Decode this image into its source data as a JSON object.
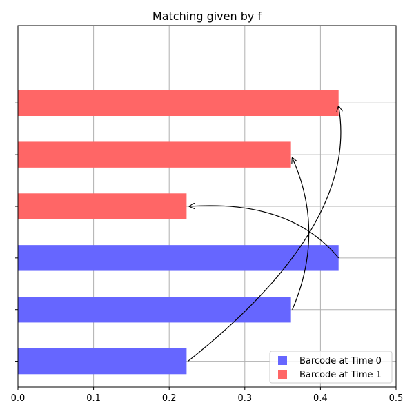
{
  "chart_data": {
    "type": "bar",
    "orientation": "horizontal",
    "title": "Matching given by f",
    "xlabel": "",
    "ylabel": "",
    "xlim": [
      0,
      0.5
    ],
    "x_ticks": [
      "0.0",
      "0.1",
      "0.2",
      "0.3",
      "0.4",
      "0.5"
    ],
    "grid": true,
    "legend_position": "bottom-right",
    "series": [
      {
        "name": "Barcode at Time 0",
        "color": "#6666ff",
        "bars": [
          {
            "start": 0,
            "end": 0.223
          },
          {
            "start": 0,
            "end": 0.361
          },
          {
            "start": 0,
            "end": 0.424
          }
        ]
      },
      {
        "name": "Barcode at Time 1",
        "color": "#ff6666",
        "bars": [
          {
            "start": 0,
            "end": 0.223
          },
          {
            "start": 0,
            "end": 0.361
          },
          {
            "start": 0,
            "end": 0.424
          }
        ]
      }
    ],
    "matching": [
      {
        "from_series": 0,
        "from_bar": 0,
        "to_series": 1,
        "to_bar": 2
      },
      {
        "from_series": 0,
        "from_bar": 1,
        "to_series": 1,
        "to_bar": 1
      },
      {
        "from_series": 0,
        "from_bar": 2,
        "to_series": 1,
        "to_bar": 0
      }
    ]
  }
}
